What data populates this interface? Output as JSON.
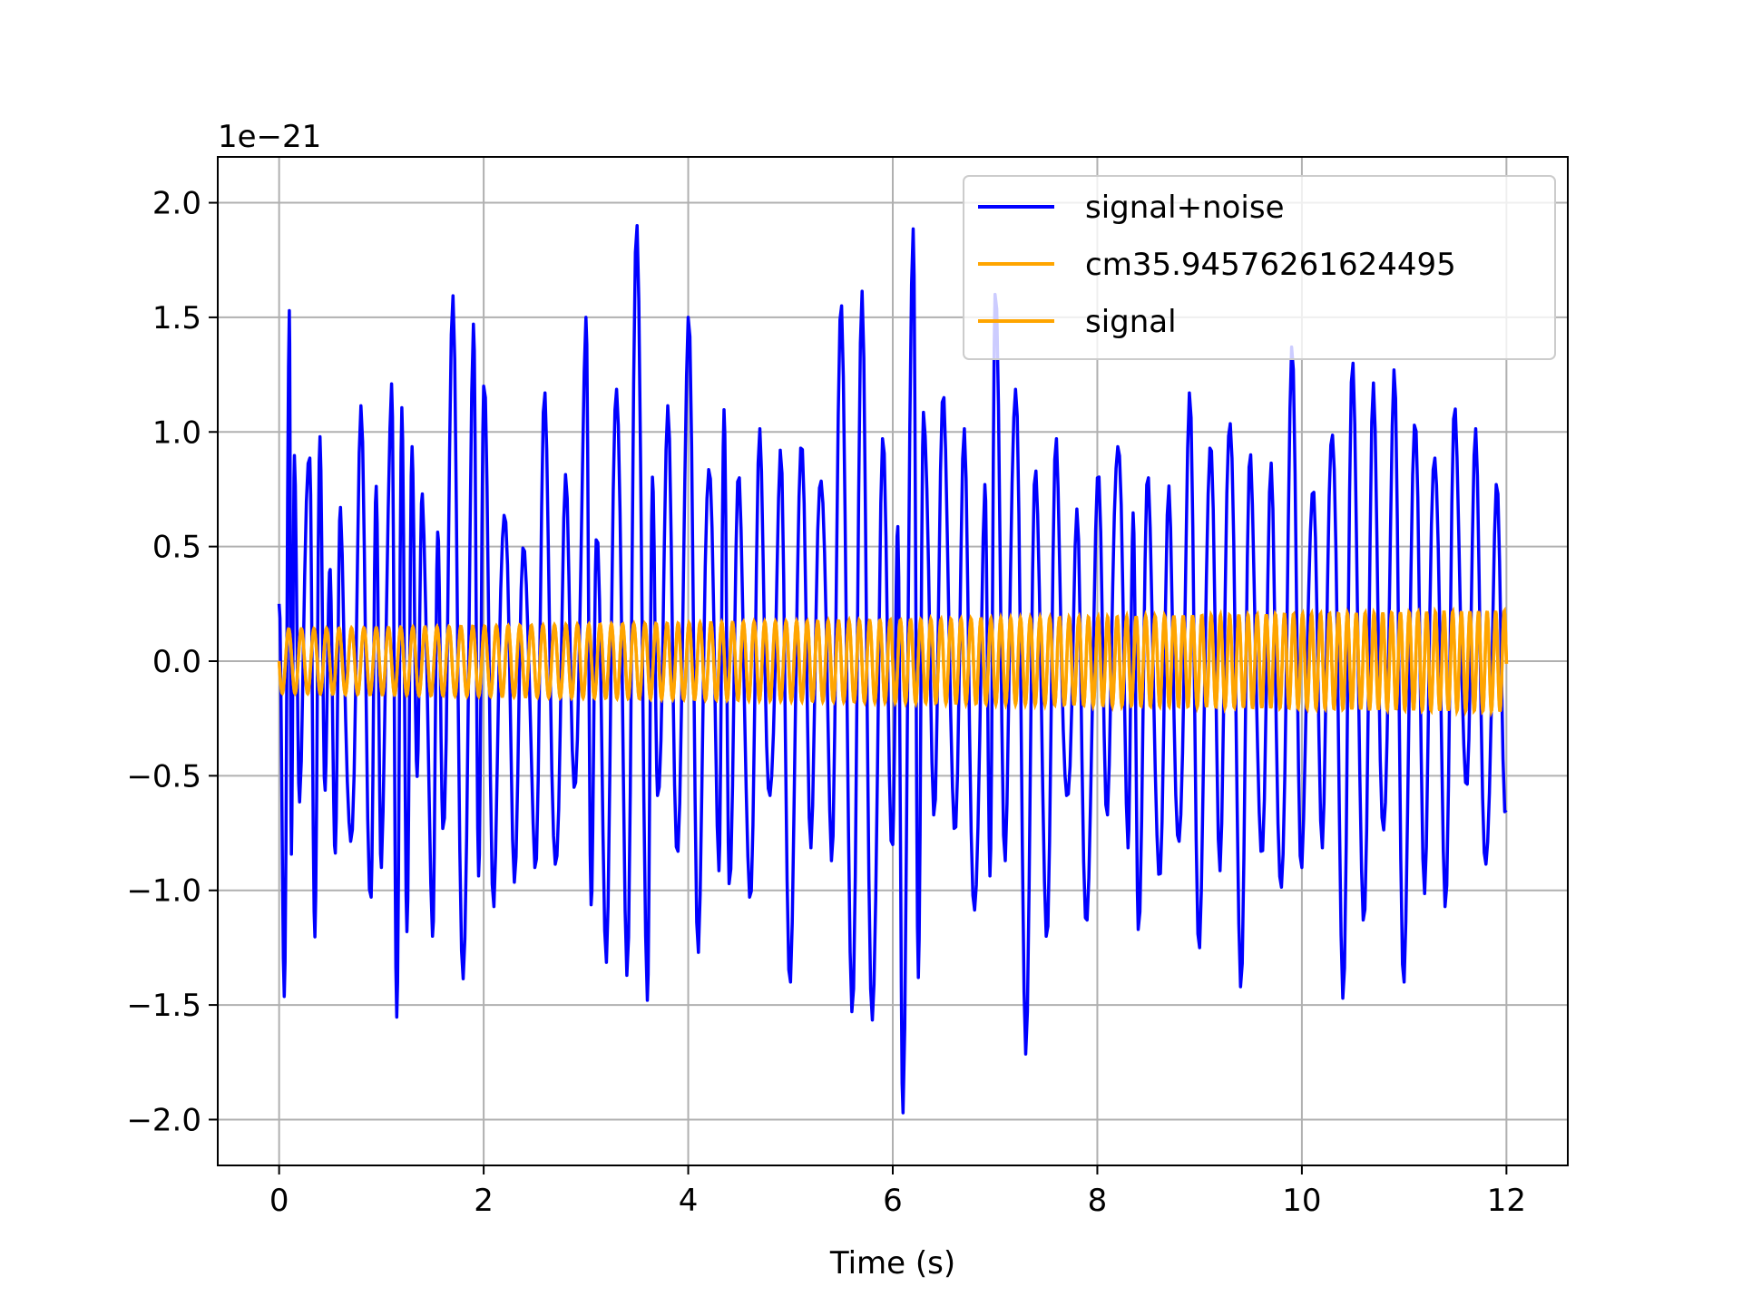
{
  "chart_data": {
    "type": "line",
    "title": "",
    "xlabel": "Time (s)",
    "ylabel": "",
    "y_offset_text": "1e−21",
    "y_scale_factor": 1e-21,
    "xlim": [
      -0.6,
      12.6
    ],
    "ylim": [
      -2.2,
      2.2
    ],
    "x_ticks": [
      0,
      2,
      4,
      6,
      8,
      10,
      12
    ],
    "x_tick_labels": [
      "0",
      "2",
      "4",
      "6",
      "8",
      "10",
      "12"
    ],
    "y_ticks": [
      -2.0,
      -1.5,
      -1.0,
      -0.5,
      0.0,
      0.5,
      1.0,
      1.5,
      2.0
    ],
    "y_tick_labels": [
      "−2.0",
      "−1.5",
      "−1.0",
      "−0.5",
      "0.0",
      "0.5",
      "1.0",
      "1.5",
      "2.0"
    ],
    "grid": true,
    "legend_position": "top-right",
    "series": [
      {
        "name": "signal+noise",
        "color": "#0000ff",
        "x": [
          0,
          0.05,
          0.1,
          0.12,
          0.15,
          0.2,
          0.3,
          0.35,
          0.4,
          0.45,
          0.5,
          0.55,
          0.6,
          0.7,
          0.8,
          0.9,
          0.95,
          1.0,
          1.1,
          1.15,
          1.2,
          1.25,
          1.3,
          1.35,
          1.4,
          1.5,
          1.55,
          1.6,
          1.7,
          1.8,
          1.9,
          1.95,
          2.0,
          2.1,
          2.2,
          2.3,
          2.4,
          2.5,
          2.6,
          2.7,
          2.8,
          2.9,
          3.0,
          3.05,
          3.1,
          3.2,
          3.3,
          3.4,
          3.5,
          3.6,
          3.65,
          3.7,
          3.8,
          3.9,
          4.0,
          4.1,
          4.2,
          4.3,
          4.35,
          4.4,
          4.5,
          4.6,
          4.7,
          4.8,
          4.9,
          5.0,
          5.1,
          5.2,
          5.3,
          5.4,
          5.5,
          5.6,
          5.7,
          5.8,
          5.9,
          6.0,
          6.05,
          6.1,
          6.2,
          6.25,
          6.3,
          6.4,
          6.5,
          6.6,
          6.7,
          6.8,
          6.9,
          6.95,
          7.0,
          7.1,
          7.2,
          7.3,
          7.4,
          7.5,
          7.6,
          7.7,
          7.8,
          7.9,
          8.0,
          8.1,
          8.2,
          8.3,
          8.35,
          8.4,
          8.5,
          8.6,
          8.7,
          8.8,
          8.9,
          9.0,
          9.1,
          9.2,
          9.3,
          9.4,
          9.5,
          9.6,
          9.7,
          9.8,
          9.9,
          10.0,
          10.1,
          10.2,
          10.3,
          10.4,
          10.5,
          10.6,
          10.7,
          10.8,
          10.9,
          11.0,
          11.1,
          11.2,
          11.3,
          11.4,
          11.5,
          11.6,
          11.7,
          11.8,
          11.9,
          12.0
        ],
        "y": [
          0.25,
          -1.5,
          1.6,
          -0.9,
          0.8,
          -0.5,
          1.0,
          -1.3,
          1.05,
          -0.6,
          0.4,
          -0.8,
          0.6,
          -0.9,
          1.0,
          -1.1,
          0.8,
          -0.9,
          1.28,
          -1.65,
          1.22,
          -1.3,
          1.05,
          -0.6,
          0.8,
          -1.2,
          0.6,
          -0.8,
          1.48,
          -1.5,
          1.4,
          -0.9,
          1.2,
          -1.0,
          0.75,
          -0.85,
          0.55,
          -0.9,
          1.1,
          -1.0,
          0.7,
          -0.6,
          1.5,
          -1.1,
          0.6,
          -1.2,
          1.3,
          -1.3,
          1.9,
          -1.55,
          0.9,
          -0.7,
          1.0,
          -0.9,
          1.5,
          -1.2,
          0.95,
          -0.8,
          1.0,
          -0.9,
          0.8,
          -1.1,
          0.9,
          -0.7,
          0.85,
          -1.4,
          1.0,
          -0.7,
          0.9,
          -0.8,
          1.55,
          -1.6,
          1.5,
          -1.68,
          0.9,
          -0.8,
          0.55,
          -1.9,
          2.0,
          -1.5,
          1.2,
          -0.6,
          1.15,
          -0.8,
          0.9,
          -1.2,
          0.7,
          -0.9,
          1.6,
          -0.8,
          1.3,
          -1.6,
          0.9,
          -1.2,
          0.9,
          -0.7,
          0.55,
          -1.2,
          0.8,
          -0.6,
          1.05,
          -0.7,
          0.55,
          -1.1,
          0.8,
          -1.0,
          0.65,
          -0.9,
          1.1,
          -1.25,
          1.0,
          -0.8,
          1.15,
          -1.35,
          0.9,
          -0.9,
          0.75,
          -1.1,
          1.3,
          -0.9,
          0.8,
          -0.7,
          1.1,
          -1.4,
          1.3,
          -1.2,
          1.1,
          -0.85,
          1.2,
          -1.4,
          1.1,
          -0.9,
          1.0,
          -1.0,
          1.1,
          -0.6,
          0.9,
          -1.0,
          0.7,
          -0.65
        ]
      },
      {
        "name": "cm35.94576261624495",
        "color": "#ffa500",
        "amplitude_start": 0.14,
        "amplitude_end": 0.22,
        "frequency_start_hz": 8.0,
        "frequency_end_hz": 12.0,
        "x_range": [
          0,
          12
        ]
      },
      {
        "name": "signal",
        "color": "#ffa500",
        "amplitude_start": 0.14,
        "amplitude_end": 0.22,
        "frequency_start_hz": 8.0,
        "frequency_end_hz": 12.0,
        "x_range": [
          0,
          12
        ]
      }
    ]
  }
}
